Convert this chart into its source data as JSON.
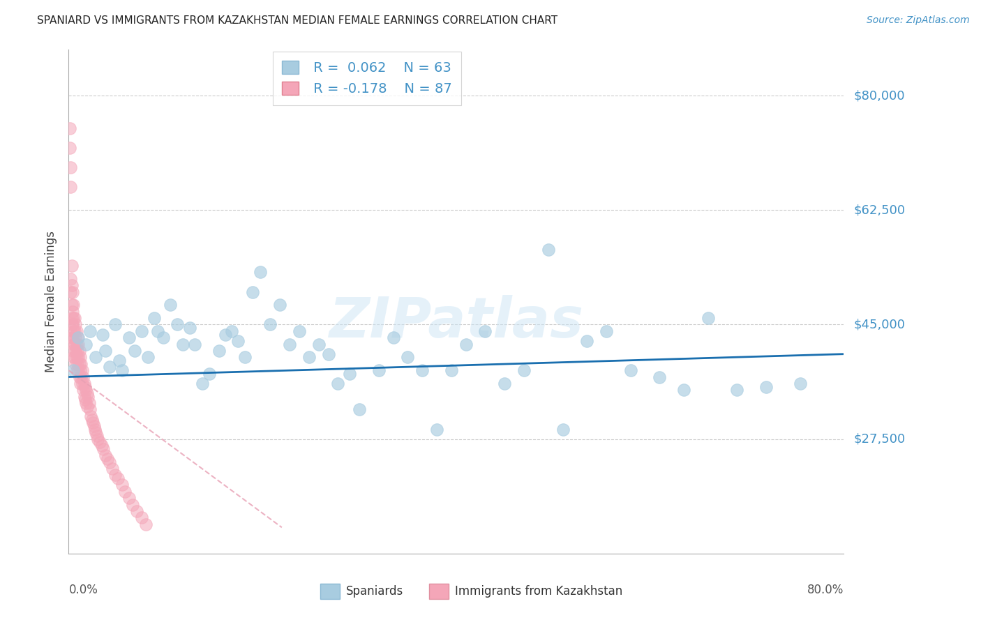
{
  "title": "SPANIARD VS IMMIGRANTS FROM KAZAKHSTAN MEDIAN FEMALE EARNINGS CORRELATION CHART",
  "source": "Source: ZipAtlas.com",
  "ylabel": "Median Female Earnings",
  "ytick_values": [
    27500,
    45000,
    62500,
    80000
  ],
  "ytick_labels": [
    "$27,500",
    "$45,000",
    "$62,500",
    "$80,000"
  ],
  "ymin": 10000,
  "ymax": 87000,
  "xmin": 0.0,
  "xmax": 0.8,
  "legend1_r": "0.062",
  "legend1_n": "63",
  "legend2_r": "-0.178",
  "legend2_n": "87",
  "blue_color": "#a8cce0",
  "pink_color": "#f4a6b8",
  "line_blue_color": "#1a6faf",
  "text_blue": "#4292c6",
  "watermark": "ZIPatlas",
  "title_color": "#222222",
  "source_color": "#4292c6",
  "spaniards_x": [
    0.005,
    0.01,
    0.018,
    0.022,
    0.028,
    0.035,
    0.038,
    0.042,
    0.048,
    0.052,
    0.055,
    0.062,
    0.068,
    0.075,
    0.082,
    0.088,
    0.092,
    0.098,
    0.105,
    0.112,
    0.118,
    0.125,
    0.13,
    0.138,
    0.145,
    0.155,
    0.162,
    0.168,
    0.175,
    0.182,
    0.19,
    0.198,
    0.208,
    0.218,
    0.228,
    0.238,
    0.248,
    0.258,
    0.268,
    0.278,
    0.29,
    0.3,
    0.32,
    0.335,
    0.35,
    0.365,
    0.38,
    0.395,
    0.41,
    0.43,
    0.45,
    0.47,
    0.495,
    0.51,
    0.535,
    0.555,
    0.58,
    0.61,
    0.635,
    0.66,
    0.69,
    0.72,
    0.755
  ],
  "spaniards_y": [
    38000,
    43000,
    42000,
    44000,
    40000,
    43500,
    41000,
    38500,
    45000,
    39500,
    38000,
    43000,
    41000,
    44000,
    40000,
    46000,
    44000,
    43000,
    48000,
    45000,
    42000,
    44500,
    42000,
    36000,
    37500,
    41000,
    43500,
    44000,
    42500,
    40000,
    50000,
    53000,
    45000,
    48000,
    42000,
    44000,
    40000,
    42000,
    40500,
    36000,
    37500,
    32000,
    38000,
    43000,
    40000,
    38000,
    29000,
    38000,
    42000,
    44000,
    36000,
    38000,
    56500,
    29000,
    42500,
    44000,
    38000,
    37000,
    35000,
    46000,
    35000,
    35500,
    36000
  ],
  "immigrants_x": [
    0.001,
    0.001,
    0.002,
    0.002,
    0.002,
    0.002,
    0.003,
    0.003,
    0.003,
    0.003,
    0.003,
    0.003,
    0.004,
    0.004,
    0.004,
    0.004,
    0.004,
    0.005,
    0.005,
    0.005,
    0.005,
    0.005,
    0.006,
    0.006,
    0.006,
    0.006,
    0.007,
    0.007,
    0.007,
    0.007,
    0.008,
    0.008,
    0.008,
    0.008,
    0.009,
    0.009,
    0.009,
    0.01,
    0.01,
    0.01,
    0.011,
    0.011,
    0.011,
    0.012,
    0.012,
    0.012,
    0.013,
    0.013,
    0.014,
    0.014,
    0.015,
    0.015,
    0.016,
    0.016,
    0.017,
    0.017,
    0.018,
    0.018,
    0.019,
    0.019,
    0.02,
    0.021,
    0.022,
    0.023,
    0.024,
    0.025,
    0.026,
    0.027,
    0.028,
    0.029,
    0.03,
    0.032,
    0.034,
    0.036,
    0.038,
    0.04,
    0.042,
    0.045,
    0.048,
    0.051,
    0.055,
    0.058,
    0.062,
    0.066,
    0.07,
    0.075,
    0.08
  ],
  "immigrants_y": [
    75000,
    72000,
    69000,
    66000,
    52000,
    50000,
    54000,
    51000,
    48000,
    46000,
    45000,
    43000,
    50000,
    47000,
    45000,
    43000,
    41000,
    48000,
    46000,
    44000,
    42000,
    40000,
    46000,
    44000,
    42000,
    40000,
    45000,
    43000,
    41000,
    39000,
    44000,
    42000,
    40000,
    38000,
    43000,
    41000,
    39000,
    42000,
    40000,
    38000,
    41000,
    39000,
    37000,
    40000,
    38000,
    36000,
    39000,
    37000,
    38000,
    36000,
    37000,
    35000,
    36000,
    34000,
    35500,
    33500,
    35000,
    33000,
    34500,
    32500,
    34000,
    33000,
    32000,
    31000,
    30500,
    30000,
    29500,
    29000,
    28500,
    28000,
    27500,
    27000,
    26500,
    26000,
    25000,
    24500,
    24000,
    23000,
    22000,
    21500,
    20500,
    19500,
    18500,
    17500,
    16500,
    15500,
    14500
  ],
  "blue_trendline_x": [
    0.0,
    0.8
  ],
  "blue_trendline_y": [
    37000,
    40500
  ],
  "pink_trendline_x": [
    0.0,
    0.22
  ],
  "pink_trendline_y": [
    38000,
    14000
  ]
}
